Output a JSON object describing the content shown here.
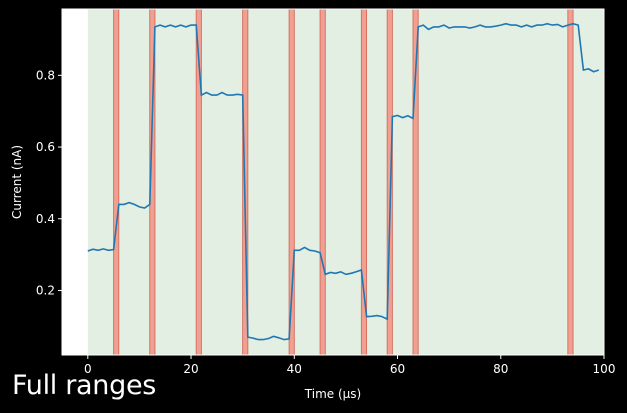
{
  "caption": "Full ranges",
  "chart_data": {
    "type": "line",
    "title": "",
    "xlabel": "Time (μs)",
    "ylabel": "Current (nA)",
    "xlim": [
      -5,
      100
    ],
    "ylim": [
      0.02,
      0.985
    ],
    "xticks": [
      0,
      20,
      40,
      60,
      80,
      100
    ],
    "yticks": [
      0.2,
      0.4,
      0.6,
      0.8
    ],
    "grid": false,
    "legend": "none",
    "colors": {
      "figure_background": "#000000",
      "axes_background": "#ffffff",
      "region_fill": "#e2efe2",
      "marker_fill": "#f0a090",
      "marker_edge": "#d46a5e",
      "line": "#1f77b4",
      "text": "#ffffff"
    },
    "shaded_region": [
      0,
      100
    ],
    "transition_markers": [
      5.5,
      12.5,
      21.5,
      30.5,
      39.5,
      45.5,
      53.5,
      58.5,
      63.5,
      93.5
    ],
    "series": [
      {
        "x": [
          0,
          1,
          2,
          3,
          4,
          5,
          6,
          7,
          8,
          9,
          10,
          11,
          12,
          13,
          14,
          15,
          16,
          17,
          18,
          19,
          20,
          21,
          22,
          23,
          24,
          25,
          26,
          27,
          28,
          29,
          30,
          31,
          32,
          33,
          34,
          35,
          36,
          37,
          38,
          39,
          40,
          41,
          42,
          43,
          44,
          45,
          46,
          47,
          48,
          49,
          50,
          51,
          52,
          53,
          54,
          55,
          56,
          57,
          58,
          59,
          60,
          61,
          62,
          63,
          64,
          65,
          66,
          67,
          68,
          69,
          70,
          71,
          72,
          73,
          74,
          75,
          76,
          77,
          78,
          79,
          80,
          81,
          82,
          83,
          84,
          85,
          86,
          87,
          88,
          89,
          90,
          91,
          92,
          93,
          94,
          95,
          96,
          97,
          98,
          99
        ],
        "y": [
          0.31,
          0.315,
          0.312,
          0.316,
          0.312,
          0.314,
          0.44,
          0.44,
          0.445,
          0.44,
          0.433,
          0.43,
          0.44,
          0.935,
          0.94,
          0.935,
          0.94,
          0.935,
          0.94,
          0.935,
          0.94,
          0.94,
          0.745,
          0.752,
          0.745,
          0.745,
          0.752,
          0.745,
          0.745,
          0.747,
          0.745,
          0.07,
          0.067,
          0.063,
          0.063,
          0.066,
          0.072,
          0.068,
          0.063,
          0.065,
          0.312,
          0.312,
          0.32,
          0.312,
          0.31,
          0.305,
          0.245,
          0.25,
          0.248,
          0.252,
          0.245,
          0.248,
          0.252,
          0.257,
          0.127,
          0.128,
          0.13,
          0.127,
          0.12,
          0.685,
          0.688,
          0.682,
          0.687,
          0.68,
          0.935,
          0.94,
          0.928,
          0.935,
          0.935,
          0.94,
          0.932,
          0.935,
          0.935,
          0.935,
          0.932,
          0.935,
          0.94,
          0.935,
          0.935,
          0.937,
          0.94,
          0.944,
          0.94,
          0.94,
          0.935,
          0.94,
          0.935,
          0.94,
          0.94,
          0.944,
          0.94,
          0.942,
          0.935,
          0.94,
          0.944,
          0.94,
          0.815,
          0.818,
          0.81,
          0.815
        ]
      }
    ]
  }
}
